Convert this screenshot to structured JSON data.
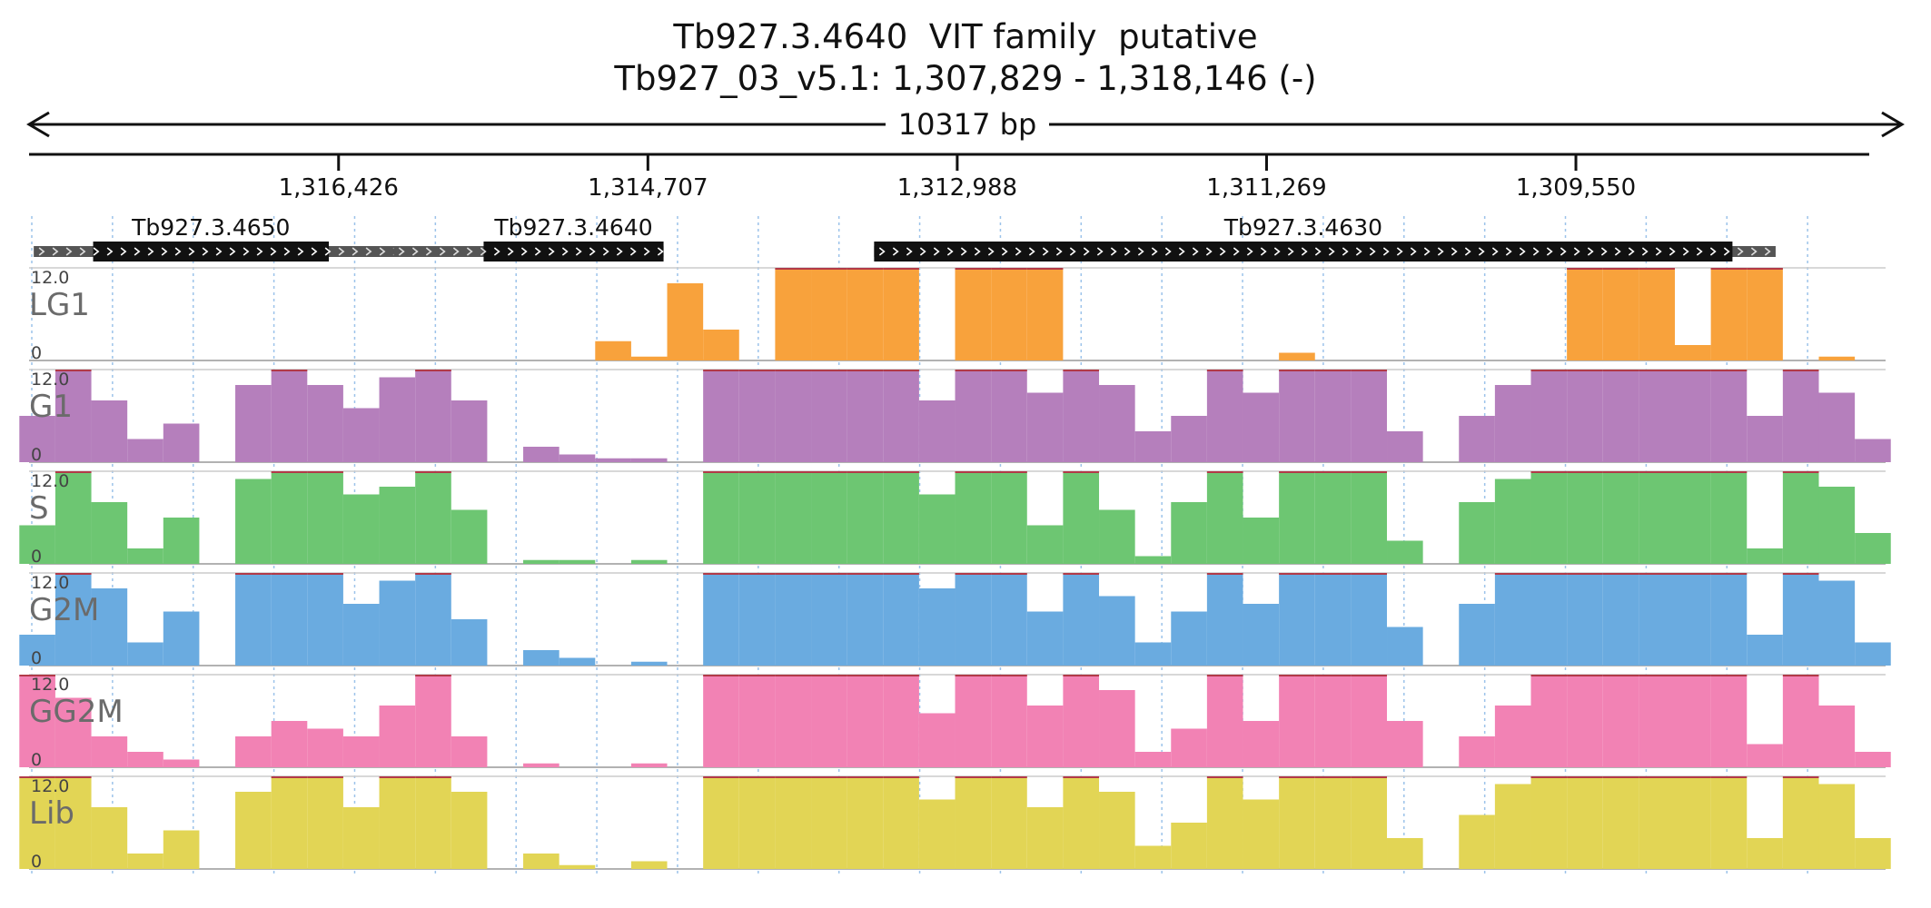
{
  "header": {
    "title": "Tb927.3.4640  VIT family  putative",
    "location": "Tb927_03_v5.1: 1,307,829 - 1,318,146 (-)"
  },
  "ruler": {
    "span_label": "10317 bp",
    "ticks": [
      "1,316,426",
      "1,314,707",
      "1,312,988",
      "1,311,269",
      "1,309,550"
    ]
  },
  "chart_data": {
    "type": "area",
    "chromosome": "Tb927_03_v5.1",
    "strand": "-",
    "x_range": [
      1318146,
      1307829
    ],
    "x_reversed": true,
    "ylim": [
      0,
      12.0
    ],
    "genes": [
      {
        "name": "Tb927.3.4650",
        "utr": [
          1318120,
          1315050
        ],
        "cds": [
          1317790,
          1316480
        ]
      },
      {
        "name": "Tb927.3.4640",
        "utr": [
          1316120,
          1314620
        ],
        "cds": [
          1315620,
          1314620
        ]
      },
      {
        "name": "Tb927.3.4630",
        "utr": [
          1313450,
          1308440
        ],
        "cds": [
          1313450,
          1308680
        ]
      }
    ],
    "positions": [
      1318100,
      1317900,
      1317700,
      1317500,
      1317300,
      1317100,
      1316900,
      1316700,
      1316500,
      1316300,
      1316100,
      1315900,
      1315700,
      1315500,
      1315300,
      1315100,
      1314900,
      1314700,
      1314500,
      1314300,
      1314100,
      1313900,
      1313700,
      1313500,
      1313300,
      1313100,
      1312900,
      1312700,
      1312500,
      1312300,
      1312100,
      1311900,
      1311700,
      1311500,
      1311300,
      1311100,
      1310900,
      1310700,
      1310500,
      1310300,
      1310100,
      1309900,
      1309700,
      1309500,
      1309300,
      1309100,
      1308900,
      1308700,
      1308500,
      1308300,
      1308100,
      1307900
    ],
    "series": [
      {
        "name": "LG1",
        "color": "#f8a23c",
        "values": [
          0,
          0,
          0,
          0,
          0,
          0,
          0,
          0,
          0,
          0,
          0,
          0,
          0,
          0,
          0,
          0,
          2.5,
          0.5,
          10,
          4,
          0,
          12,
          12,
          12,
          12,
          0,
          12,
          12,
          12,
          0,
          0,
          0,
          0,
          0,
          0,
          1,
          0,
          0,
          0,
          0,
          0,
          0,
          0,
          12,
          12,
          12,
          2,
          12,
          12,
          0,
          0.5,
          0
        ]
      },
      {
        "name": "G1",
        "color": "#b57fbc",
        "values": [
          6,
          12,
          8,
          3,
          5,
          0,
          10,
          12,
          10,
          7,
          11,
          12,
          8,
          0,
          2,
          1,
          0.5,
          0.5,
          0,
          12,
          12,
          12,
          12,
          12,
          12,
          8,
          12,
          12,
          9,
          12,
          10,
          4,
          6,
          12,
          9,
          12,
          12,
          12,
          4,
          0,
          6,
          10,
          12,
          12,
          12,
          12,
          12,
          12,
          6,
          12,
          9,
          3
        ]
      },
      {
        "name": "S",
        "color": "#6dc672",
        "values": [
          5,
          12,
          8,
          2,
          6,
          0,
          11,
          12,
          12,
          9,
          10,
          12,
          7,
          0,
          0.5,
          0.5,
          0,
          0.5,
          0,
          12,
          12,
          12,
          12,
          12,
          12,
          9,
          12,
          12,
          5,
          12,
          7,
          1,
          8,
          12,
          6,
          12,
          12,
          12,
          3,
          0,
          8,
          11,
          12,
          12,
          12,
          12,
          12,
          12,
          2,
          12,
          10,
          4
        ]
      },
      {
        "name": "G2M",
        "color": "#6aabe0",
        "values": [
          4,
          12,
          10,
          3,
          7,
          0,
          12,
          12,
          12,
          8,
          11,
          12,
          6,
          0,
          2,
          1,
          0,
          0.5,
          0,
          12,
          12,
          12,
          12,
          12,
          12,
          10,
          12,
          12,
          7,
          12,
          9,
          3,
          7,
          12,
          8,
          12,
          12,
          12,
          5,
          0,
          8,
          12,
          12,
          12,
          12,
          12,
          12,
          12,
          4,
          12,
          11,
          3
        ]
      },
      {
        "name": "GG2M",
        "color": "#f282b4",
        "values": [
          12,
          9,
          4,
          2,
          1,
          0,
          4,
          6,
          5,
          4,
          8,
          12,
          4,
          0,
          0.5,
          0,
          0,
          0.5,
          0,
          12,
          12,
          12,
          12,
          12,
          12,
          7,
          12,
          12,
          8,
          12,
          10,
          2,
          5,
          12,
          6,
          12,
          12,
          12,
          6,
          0,
          4,
          8,
          12,
          12,
          12,
          12,
          12,
          12,
          3,
          12,
          8,
          2
        ]
      },
      {
        "name": "Lib",
        "color": "#e2d555",
        "values": [
          12,
          12,
          8,
          2,
          5,
          0,
          10,
          12,
          12,
          8,
          12,
          12,
          10,
          0,
          2,
          0.5,
          0,
          1,
          0,
          12,
          12,
          12,
          12,
          12,
          12,
          9,
          12,
          12,
          8,
          12,
          10,
          3,
          6,
          12,
          9,
          12,
          12,
          12,
          4,
          0,
          7,
          11,
          12,
          12,
          12,
          12,
          12,
          12,
          4,
          12,
          11,
          4
        ]
      }
    ]
  }
}
